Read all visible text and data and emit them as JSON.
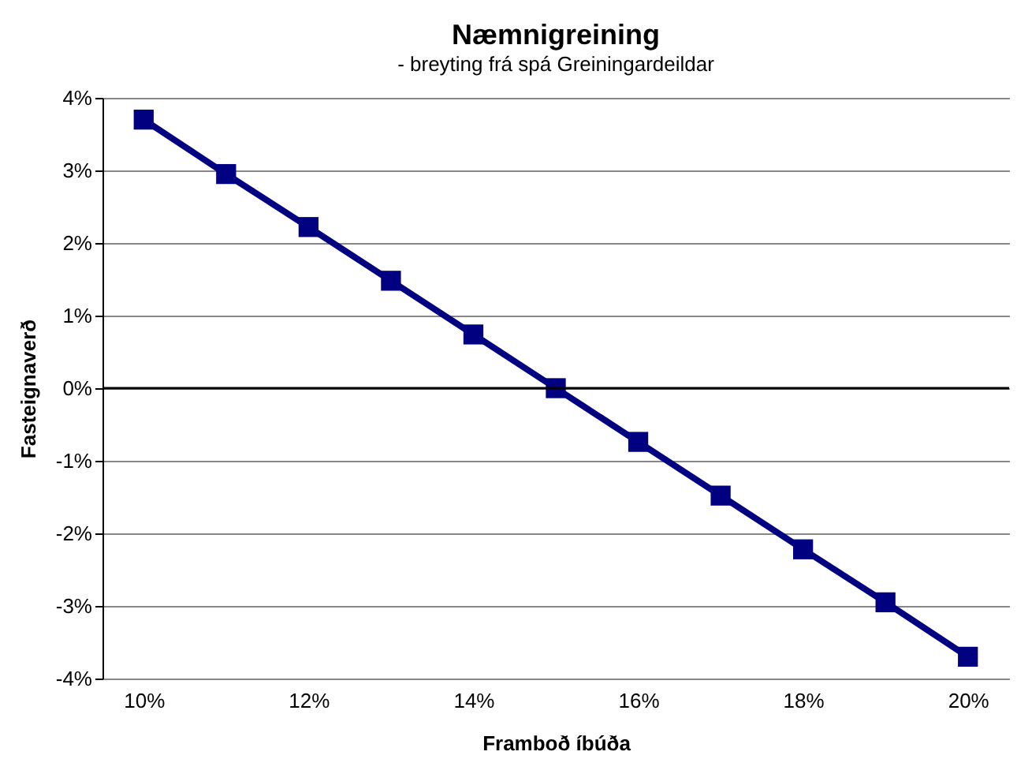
{
  "chart_data": {
    "type": "line",
    "title": "Næmnigreining",
    "subtitle": "- breyting frá spá Greiningardeildar",
    "xlabel": "Framboð íbúða",
    "ylabel": "Fasteignaverð",
    "x": [
      10,
      11,
      12,
      13,
      14,
      15,
      16,
      17,
      18,
      19,
      20
    ],
    "series": [
      {
        "color": "#000080",
        "values": [
          3.7,
          2.95,
          2.22,
          1.48,
          0.74,
          0,
          -0.74,
          -1.48,
          -2.22,
          -2.95,
          -3.7
        ]
      }
    ],
    "xlim": [
      9.5,
      20.5
    ],
    "xticks": [
      {
        "value": 10,
        "label": "10%"
      },
      {
        "value": 12,
        "label": "12%"
      },
      {
        "value": 14,
        "label": "14%"
      },
      {
        "value": 16,
        "label": "16%"
      },
      {
        "value": 18,
        "label": "18%"
      },
      {
        "value": 20,
        "label": "20%"
      }
    ],
    "ylim": [
      -4,
      4
    ],
    "yticks": [
      {
        "value": -4,
        "label": "-4%"
      },
      {
        "value": -3,
        "label": "-3%"
      },
      {
        "value": -2,
        "label": "-2%"
      },
      {
        "value": -1,
        "label": "-1%"
      },
      {
        "value": 0,
        "label": "0%"
      },
      {
        "value": 1,
        "label": "1%"
      },
      {
        "value": 2,
        "label": "2%"
      },
      {
        "value": 3,
        "label": "3%"
      },
      {
        "value": 4,
        "label": "4%"
      }
    ],
    "ref_lines": [
      {
        "axis": "y",
        "value": 0,
        "color": "#000000"
      }
    ],
    "grid": "y",
    "marker": "square",
    "line_style": "solid",
    "legend": false
  }
}
